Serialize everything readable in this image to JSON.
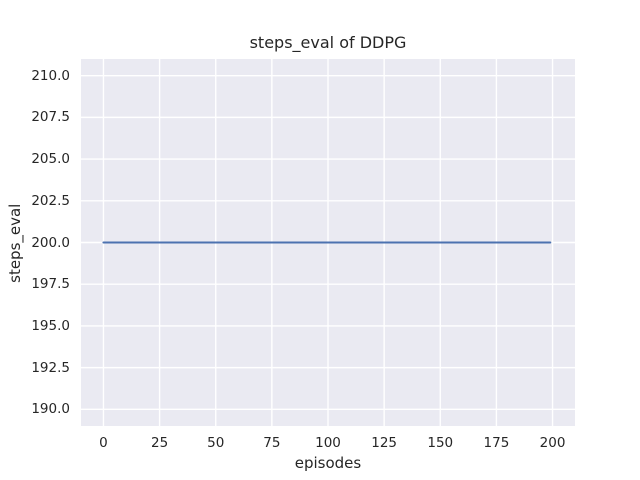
{
  "chart_data": {
    "type": "line",
    "title": "steps_eval of DDPG",
    "xlabel": "episodes",
    "ylabel": "steps_eval",
    "xlim": [
      -10,
      210
    ],
    "ylim": [
      189,
      211
    ],
    "xticks": {
      "values": [
        0,
        25,
        50,
        75,
        100,
        125,
        150,
        175,
        200
      ],
      "labels": [
        "0",
        "25",
        "50",
        "75",
        "100",
        "125",
        "150",
        "175",
        "200"
      ]
    },
    "yticks": {
      "values": [
        190.0,
        192.5,
        195.0,
        197.5,
        200.0,
        202.5,
        205.0,
        207.5,
        210.0
      ],
      "labels": [
        "190.0",
        "192.5",
        "195.0",
        "197.5",
        "200.0",
        "202.5",
        "205.0",
        "207.5",
        "210.0"
      ]
    },
    "grid": true,
    "legend_position": "none",
    "plot_background": "#eaeaf2",
    "grid_color": "#ffffff",
    "series": [
      {
        "name": "steps_eval",
        "color": "#4c72b0",
        "x": [
          0,
          199
        ],
        "y": [
          200,
          200
        ]
      }
    ]
  }
}
